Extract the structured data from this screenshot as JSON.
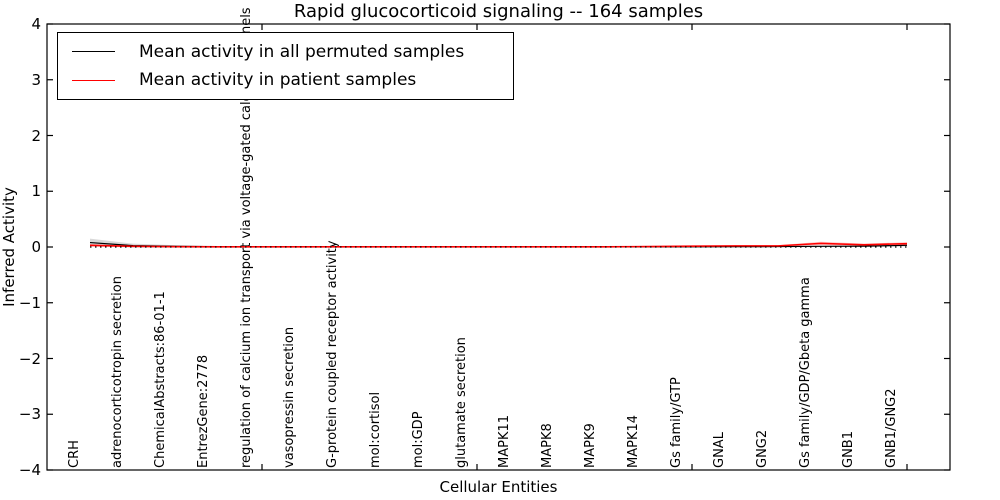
{
  "window": {
    "background": "#ffffff"
  },
  "chart_data": {
    "type": "line",
    "title": "Rapid glucocorticoid signaling -- 164 samples",
    "xlabel": "Cellular Entities",
    "ylabel": "Inferred Activity",
    "ylim": [
      -4,
      4
    ],
    "ytick_labels": [
      "4",
      "3",
      "2",
      "1",
      "0",
      "−1",
      "−2",
      "−3",
      "−4"
    ],
    "x_major_tick_positions": [
      5,
      10,
      15,
      20
    ],
    "grid": false,
    "legend_position": "upper left",
    "categories": [
      "CRH",
      "adrenocorticotropin secretion",
      "ChemicalAbstracts:86-01-1",
      "EntrezGene:2778",
      "regulation of calcium ion transport via voltage-gated calcium channels",
      "vasopressin secretion",
      "G-protein coupled receptor activity",
      "mol:cortisol",
      "mol:GDP",
      "glutamate secretion",
      "MAPK11",
      "MAPK8",
      "MAPK9",
      "MAPK14",
      "Gs family/GTP",
      "GNAL",
      "GNG2",
      "Gs family/GDP/Gbeta gamma",
      "GNB1",
      "GNB1/GNG2"
    ],
    "series": [
      {
        "name": "Mean activity in all permuted samples",
        "color": "#000000",
        "values": [
          0.08,
          0.025,
          0.012,
          0.006,
          0.004,
          0.003,
          0.003,
          0.003,
          0.003,
          0.003,
          0.003,
          0.003,
          0.003,
          0.004,
          0.005,
          0.006,
          0.008,
          0.012,
          0.015,
          0.03
        ],
        "band_halfwidth": [
          0.07,
          0.035,
          0.02,
          0.012,
          0.01,
          0.01,
          0.01,
          0.01,
          0.01,
          0.01,
          0.01,
          0.01,
          0.01,
          0.01,
          0.01,
          0.012,
          0.012,
          0.015,
          0.015,
          0.02
        ],
        "band_color": "#c0c0c0"
      },
      {
        "name": "Mean activity in patient samples",
        "color": "#ff0000",
        "values": [
          0.03,
          0.012,
          0.006,
          0.004,
          0.003,
          0.003,
          0.003,
          0.003,
          0.003,
          0.003,
          0.003,
          0.003,
          0.004,
          0.008,
          0.015,
          0.02,
          0.02,
          0.065,
          0.04,
          0.06
        ],
        "band_halfwidth": [
          0.02,
          0.012,
          0.008,
          0.006,
          0.005,
          0.005,
          0.005,
          0.005,
          0.005,
          0.005,
          0.005,
          0.005,
          0.005,
          0.006,
          0.008,
          0.01,
          0.012,
          0.03,
          0.02,
          0.025
        ],
        "band_color": "#ff9999"
      }
    ],
    "zero_line": {
      "y": 0,
      "style": "dotted",
      "color": "#000000"
    }
  }
}
